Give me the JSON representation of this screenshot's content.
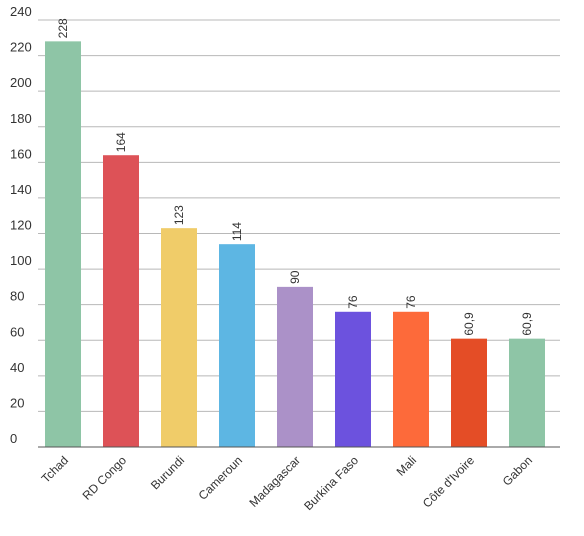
{
  "chart_data": {
    "type": "bar",
    "title": "",
    "xlabel": "",
    "ylabel": "",
    "ylim": [
      0,
      240
    ],
    "yticks": [
      0,
      20,
      40,
      60,
      80,
      100,
      120,
      140,
      160,
      180,
      200,
      220,
      240
    ],
    "grid": true,
    "categories": [
      "Tchad",
      "RD Congo",
      "Burundi",
      "Cameroun",
      "Madagascar",
      "Burkina Faso",
      "Mali",
      "Côte d'Ivoire",
      "Gabon"
    ],
    "values": [
      228,
      164,
      123,
      114,
      90,
      76,
      76,
      60.9,
      60.9
    ],
    "data_labels": [
      "228",
      "164",
      "123",
      "114",
      "90",
      "76",
      "76",
      "60,9",
      "60,9"
    ],
    "colors": [
      "#8ec5a6",
      "#dd5257",
      "#f0cc69",
      "#5db6e3",
      "#ab91c8",
      "#6c52de",
      "#fd6a3a",
      "#e44d26",
      "#8ec5a6"
    ]
  }
}
